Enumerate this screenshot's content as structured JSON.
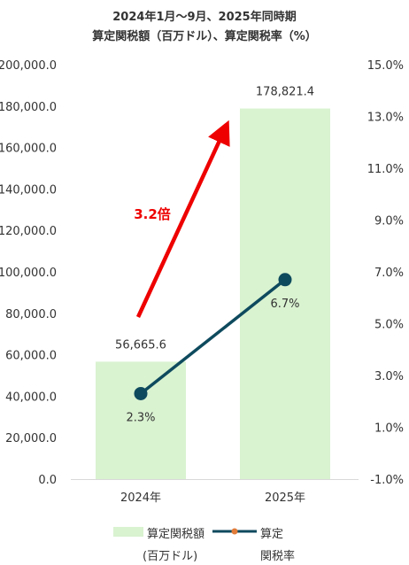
{
  "chart_data": {
    "type": "bar",
    "title": "2024年1月～9月、2025年同時期",
    "subtitle": "算定関税額（百万ドル）、算定関税率（%）",
    "categories": [
      "2024年",
      "2025年"
    ],
    "series": [
      {
        "name": "算定関税額(百万ドル)",
        "type": "bar",
        "axis": "left",
        "values": [
          56665.6,
          178821.4
        ],
        "labels": [
          "56,665.6",
          "178,821.4"
        ],
        "color": "#d9f2d0"
      },
      {
        "name": "算定関税率",
        "type": "line",
        "axis": "right",
        "values": [
          2.3,
          6.7
        ],
        "labels": [
          "2.3%",
          "6.7%"
        ],
        "color": "#0e4a5e"
      }
    ],
    "y_left": {
      "range": [
        0,
        200000
      ],
      "step": 20000,
      "ticks": [
        "0.0",
        "20,000.0",
        "40,000.0",
        "60,000.0",
        "80,000.0",
        "100,000.0",
        "120,000.0",
        "140,000.0",
        "160,000.0",
        "180,000.0",
        "200,000.0"
      ]
    },
    "y_right": {
      "range": [
        -1,
        15
      ],
      "step": 2,
      "ticks": [
        "-1.0%",
        "1.0%",
        "3.0%",
        "5.0%",
        "7.0%",
        "9.0%",
        "11.0%",
        "13.0%",
        "15.0%"
      ]
    },
    "annotation": {
      "text": "3.2倍",
      "color": "#ee0000"
    },
    "grid": false,
    "legend": {
      "position": "bottom",
      "items": [
        {
          "label_lines": [
            "算定関税額",
            "(百万ドル)"
          ],
          "swatch": "bar"
        },
        {
          "label_lines": [
            "算定",
            "関税率"
          ],
          "swatch": "line"
        }
      ]
    }
  }
}
